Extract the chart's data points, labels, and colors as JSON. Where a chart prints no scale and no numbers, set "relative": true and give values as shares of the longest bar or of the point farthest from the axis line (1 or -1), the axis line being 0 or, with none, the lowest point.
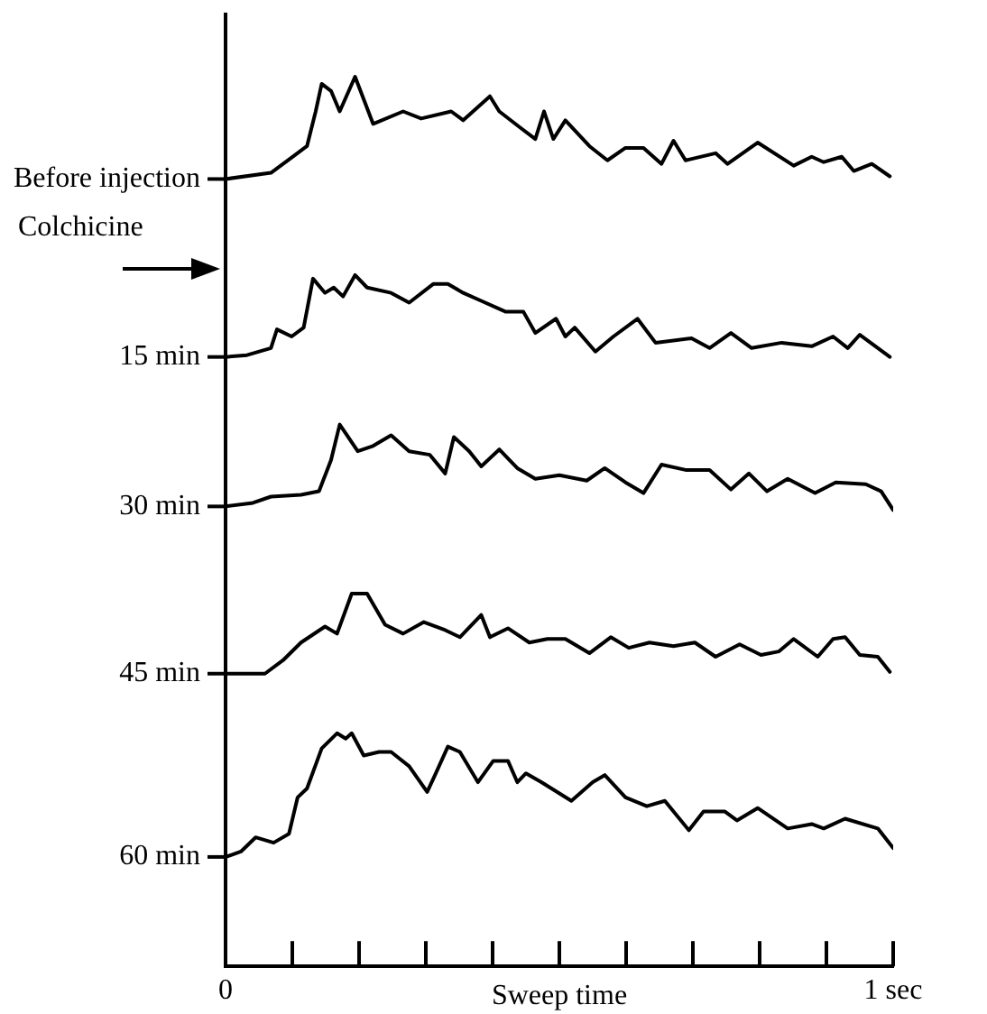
{
  "chart_data": {
    "type": "line",
    "relative": true,
    "xlabel": "Sweep time",
    "annotations": [
      "Colchicine"
    ],
    "xlim": [
      0,
      1
    ],
    "xticks": [
      {
        "value": 0,
        "label": "0"
      },
      {
        "value": 0.1,
        "label": null
      },
      {
        "value": 0.2,
        "label": null
      },
      {
        "value": 0.3,
        "label": null
      },
      {
        "value": 0.4,
        "label": null
      },
      {
        "value": 0.5,
        "label": null
      },
      {
        "value": 0.6,
        "label": null
      },
      {
        "value": 0.7,
        "label": null
      },
      {
        "value": 0.8,
        "label": null
      },
      {
        "value": 0.9,
        "label": null
      },
      {
        "value": 1,
        "label": "1 sec"
      }
    ],
    "grid": false,
    "legend": "left",
    "marker": "none",
    "line_style": "solid",
    "series": [
      {
        "name": "Before injection",
        "color": "#000000",
        "x": [
          0,
          0.068,
          0.104,
          0.122,
          0.135,
          0.144,
          0.158,
          0.171,
          0.194,
          0.221,
          0.266,
          0.293,
          0.338,
          0.356,
          0.396,
          0.41,
          0.441,
          0.464,
          0.477,
          0.491,
          0.509,
          0.545,
          0.572,
          0.599,
          0.626,
          0.653,
          0.671,
          0.689,
          0.734,
          0.752,
          0.797,
          0.851,
          0.878,
          0.896,
          0.923,
          0.941,
          0.968,
          0.995
        ],
        "values": [
          0.885,
          0.892,
          0.912,
          0.922,
          0.961,
          0.992,
          0.984,
          0.961,
          1,
          0.947,
          0.961,
          0.953,
          0.961,
          0.951,
          0.978,
          0.961,
          0.943,
          0.93,
          0.961,
          0.93,
          0.951,
          0.922,
          0.906,
          0.92,
          0.92,
          0.902,
          0.928,
          0.906,
          0.914,
          0.902,
          0.926,
          0.9,
          0.91,
          0.904,
          0.91,
          0.894,
          0.902,
          0.888
        ]
      },
      {
        "name": "15 min",
        "color": "#000000",
        "x": [
          0,
          0.032,
          0.068,
          0.077,
          0.099,
          0.117,
          0.131,
          0.149,
          0.162,
          0.176,
          0.194,
          0.212,
          0.248,
          0.275,
          0.311,
          0.333,
          0.356,
          0.383,
          0.419,
          0.446,
          0.464,
          0.495,
          0.509,
          0.523,
          0.554,
          0.581,
          0.617,
          0.644,
          0.698,
          0.725,
          0.757,
          0.788,
          0.833,
          0.878,
          0.91,
          0.932,
          0.95,
          0.995
        ],
        "values": [
          0.685,
          0.687,
          0.695,
          0.716,
          0.708,
          0.718,
          0.773,
          0.757,
          0.763,
          0.753,
          0.777,
          0.763,
          0.757,
          0.746,
          0.767,
          0.767,
          0.757,
          0.748,
          0.736,
          0.736,
          0.712,
          0.728,
          0.708,
          0.718,
          0.691,
          0.708,
          0.728,
          0.701,
          0.706,
          0.695,
          0.712,
          0.695,
          0.701,
          0.697,
          0.708,
          0.695,
          0.71,
          0.685
        ]
      },
      {
        "name": "30 min",
        "color": "#000000",
        "x": [
          0,
          0.041,
          0.068,
          0.113,
          0.14,
          0.158,
          0.171,
          0.18,
          0.198,
          0.221,
          0.248,
          0.275,
          0.306,
          0.329,
          0.342,
          0.365,
          0.383,
          0.41,
          0.437,
          0.464,
          0.5,
          0.541,
          0.568,
          0.599,
          0.626,
          0.653,
          0.689,
          0.725,
          0.757,
          0.784,
          0.811,
          0.842,
          0.883,
          0.914,
          0.959,
          0.982,
          1
        ],
        "values": [
          0.517,
          0.521,
          0.528,
          0.53,
          0.534,
          0.569,
          0.609,
          0.599,
          0.579,
          0.585,
          0.597,
          0.579,
          0.575,
          0.554,
          0.595,
          0.579,
          0.562,
          0.581,
          0.56,
          0.548,
          0.552,
          0.546,
          0.56,
          0.544,
          0.532,
          0.564,
          0.558,
          0.558,
          0.536,
          0.554,
          0.534,
          0.548,
          0.532,
          0.544,
          0.542,
          0.534,
          0.513
        ]
      },
      {
        "name": "45 min",
        "color": "#000000",
        "x": [
          0,
          0.059,
          0.086,
          0.113,
          0.149,
          0.167,
          0.189,
          0.212,
          0.239,
          0.266,
          0.297,
          0.329,
          0.351,
          0.383,
          0.396,
          0.423,
          0.455,
          0.482,
          0.509,
          0.545,
          0.577,
          0.604,
          0.635,
          0.671,
          0.703,
          0.734,
          0.77,
          0.802,
          0.829,
          0.851,
          0.887,
          0.91,
          0.928,
          0.95,
          0.977,
          0.995
        ],
        "values": [
          0.329,
          0.329,
          0.344,
          0.364,
          0.382,
          0.374,
          0.419,
          0.419,
          0.384,
          0.374,
          0.387,
          0.378,
          0.37,
          0.395,
          0.37,
          0.38,
          0.364,
          0.368,
          0.368,
          0.352,
          0.37,
          0.358,
          0.364,
          0.36,
          0.364,
          0.348,
          0.362,
          0.35,
          0.354,
          0.368,
          0.348,
          0.368,
          0.37,
          0.35,
          0.348,
          0.331
        ]
      },
      {
        "name": "60 min",
        "color": "#000000",
        "x": [
          0,
          0.023,
          0.045,
          0.072,
          0.095,
          0.108,
          0.122,
          0.144,
          0.167,
          0.18,
          0.189,
          0.207,
          0.23,
          0.248,
          0.275,
          0.302,
          0.315,
          0.333,
          0.351,
          0.378,
          0.401,
          0.423,
          0.437,
          0.45,
          0.473,
          0.518,
          0.55,
          0.568,
          0.599,
          0.631,
          0.658,
          0.694,
          0.716,
          0.748,
          0.766,
          0.797,
          0.842,
          0.878,
          0.896,
          0.928,
          0.977,
          1
        ],
        "values": [
          0.123,
          0.129,
          0.145,
          0.139,
          0.149,
          0.19,
          0.2,
          0.245,
          0.262,
          0.256,
          0.262,
          0.237,
          0.241,
          0.241,
          0.225,
          0.196,
          0.217,
          0.247,
          0.241,
          0.207,
          0.231,
          0.231,
          0.207,
          0.217,
          0.207,
          0.186,
          0.207,
          0.215,
          0.19,
          0.18,
          0.186,
          0.153,
          0.174,
          0.174,
          0.164,
          0.178,
          0.155,
          0.16,
          0.155,
          0.166,
          0.155,
          0.133
        ]
      }
    ]
  }
}
